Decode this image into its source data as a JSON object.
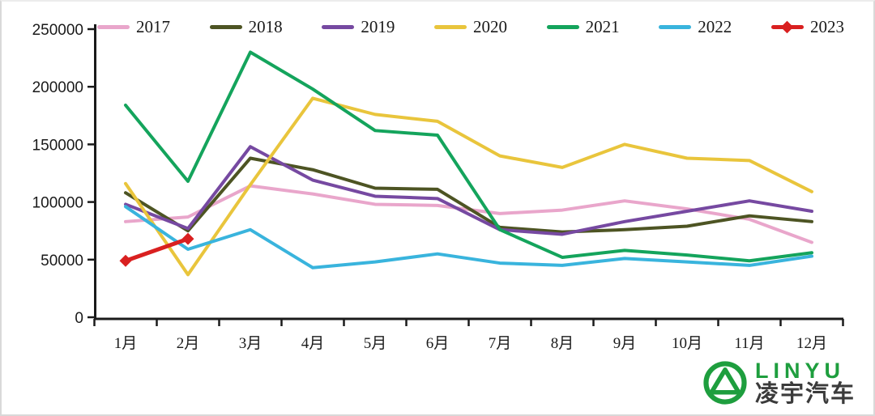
{
  "chart_data": {
    "type": "line",
    "title": "",
    "xlabel": "",
    "ylabel": "",
    "categories": [
      "1月",
      "2月",
      "3月",
      "4月",
      "5月",
      "6月",
      "7月",
      "8月",
      "9月",
      "10月",
      "11月",
      "12月"
    ],
    "y_ticks": [
      0,
      50000,
      100000,
      150000,
      200000,
      250000
    ],
    "ylim": [
      0,
      250000
    ],
    "grid": false,
    "legend_position": "top",
    "series": [
      {
        "name": "2017",
        "color": "#e9a6cb",
        "values": [
          83000,
          87000,
          114000,
          107000,
          98000,
          97000,
          90000,
          93000,
          101000,
          94000,
          85000,
          65000
        ]
      },
      {
        "name": "2018",
        "color": "#4d5423",
        "values": [
          108000,
          75000,
          138000,
          128000,
          112000,
          111000,
          78000,
          74000,
          76000,
          79000,
          88000,
          83000
        ]
      },
      {
        "name": "2019",
        "color": "#7649a1",
        "values": [
          98000,
          77000,
          148000,
          119000,
          105000,
          103000,
          76000,
          72000,
          83000,
          92000,
          101000,
          92000
        ]
      },
      {
        "name": "2020",
        "color": "#e9c53c",
        "values": [
          116000,
          37000,
          115000,
          190000,
          176000,
          170000,
          140000,
          130000,
          150000,
          138000,
          136000,
          109000
        ]
      },
      {
        "name": "2021",
        "color": "#14a45c",
        "values": [
          184000,
          118000,
          230000,
          198000,
          162000,
          158000,
          76000,
          52000,
          58000,
          54000,
          49000,
          56000
        ]
      },
      {
        "name": "2022",
        "color": "#39b4dd",
        "values": [
          96000,
          59000,
          76000,
          43000,
          48000,
          55000,
          47000,
          45000,
          51000,
          48000,
          45000,
          53000
        ]
      },
      {
        "name": "2023",
        "color": "#d92020",
        "marker": "diamond",
        "values": [
          49000,
          68000,
          null,
          null,
          null,
          null,
          null,
          null,
          null,
          null,
          null,
          null
        ]
      }
    ]
  },
  "logo": {
    "latin": "LINYU",
    "chinese": "凌宇汽车",
    "green": "#1e9e3e",
    "text_color": "#3b3b3b"
  }
}
